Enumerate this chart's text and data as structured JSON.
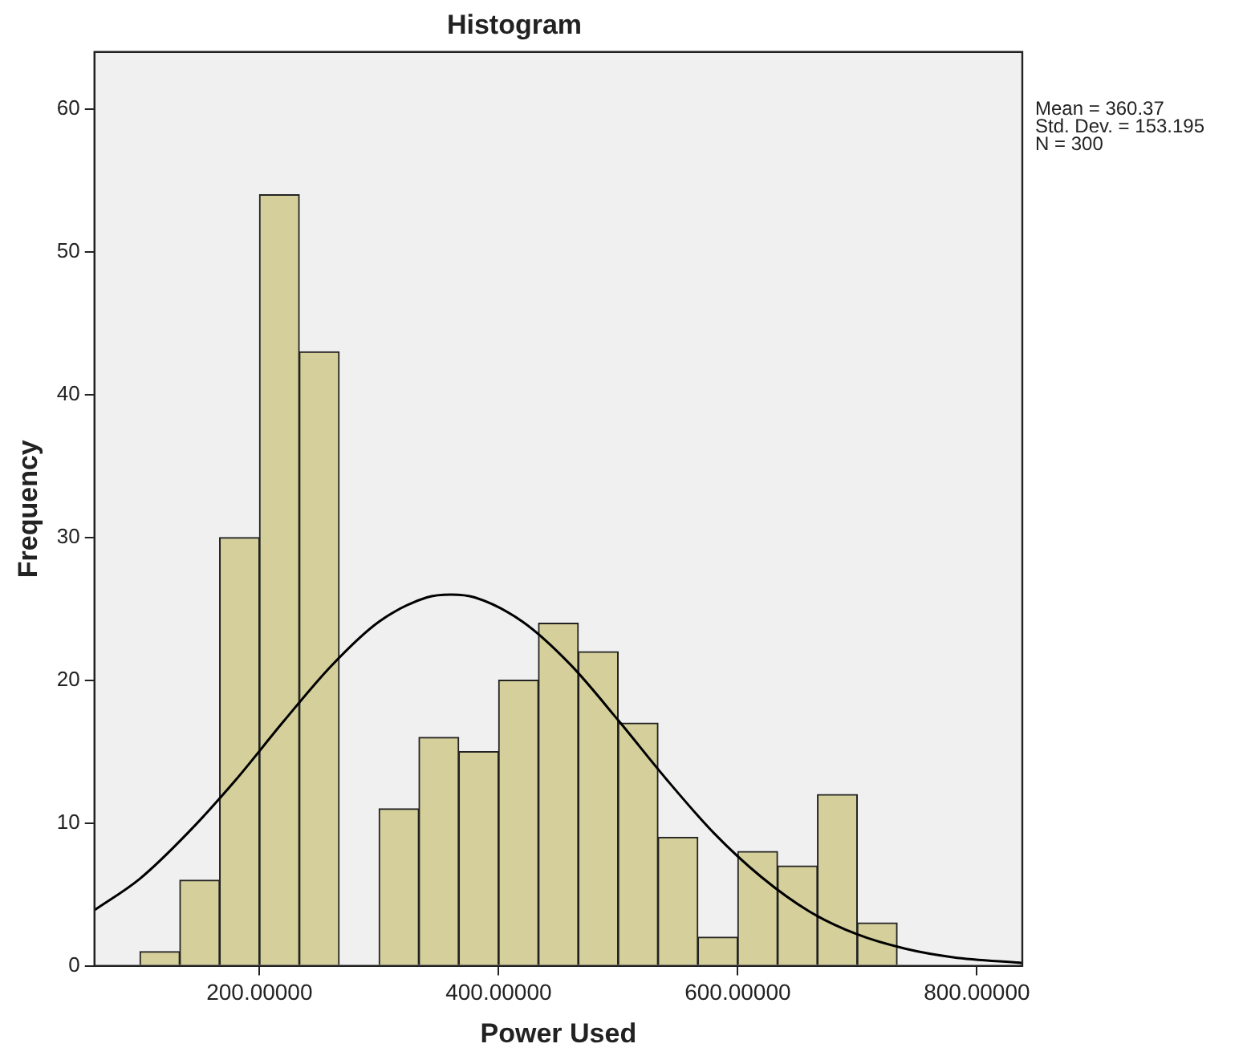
{
  "chart_data": {
    "type": "histogram",
    "title": "Histogram",
    "xlabel": "Power Used",
    "ylabel": "Frequency",
    "bins": [
      100,
      133.33,
      166.67,
      200,
      233.33,
      266.67,
      300,
      333.33,
      366.67,
      400,
      433.33,
      466.67,
      500,
      533.33,
      566.67,
      600,
      633.33,
      666.67,
      700,
      733.33
    ],
    "values": [
      1,
      6,
      30,
      54,
      43,
      0,
      11,
      16,
      15,
      20,
      24,
      22,
      17,
      9,
      2,
      8,
      7,
      12,
      3
    ],
    "color": "#d4cf9b",
    "series": [
      {
        "type": "line",
        "color": "#000000",
        "x": [
          62,
          100,
          140,
          180,
          220,
          260,
          300,
          340,
          360,
          380,
          420,
          460,
          500,
          540,
          580,
          620,
          660,
          700,
          740,
          780,
          838
        ],
        "values": [
          3.9,
          6.1,
          9.3,
          13,
          17.1,
          21,
          24.1,
          25.8,
          26,
          25.8,
          24.1,
          21.1,
          17.2,
          13.1,
          9.3,
          6.2,
          3.8,
          2.2,
          1.2,
          0.6,
          0.2
        ]
      }
    ],
    "xlim": [
      62,
      838
    ],
    "xticks": [
      {
        "value": 200,
        "label": "200.00000"
      },
      {
        "value": 400,
        "label": "400.00000"
      },
      {
        "value": 600,
        "label": "600.00000"
      },
      {
        "value": 800,
        "label": "800.00000"
      }
    ],
    "ylim": [
      0,
      64
    ],
    "yticks": [
      0,
      10,
      20,
      30,
      40,
      50,
      60
    ],
    "annotations": [
      "Mean = 360.37",
      "Std. Dev. = 153.195",
      "N = 300"
    ],
    "grid": false,
    "legend": false,
    "marker": "none"
  }
}
